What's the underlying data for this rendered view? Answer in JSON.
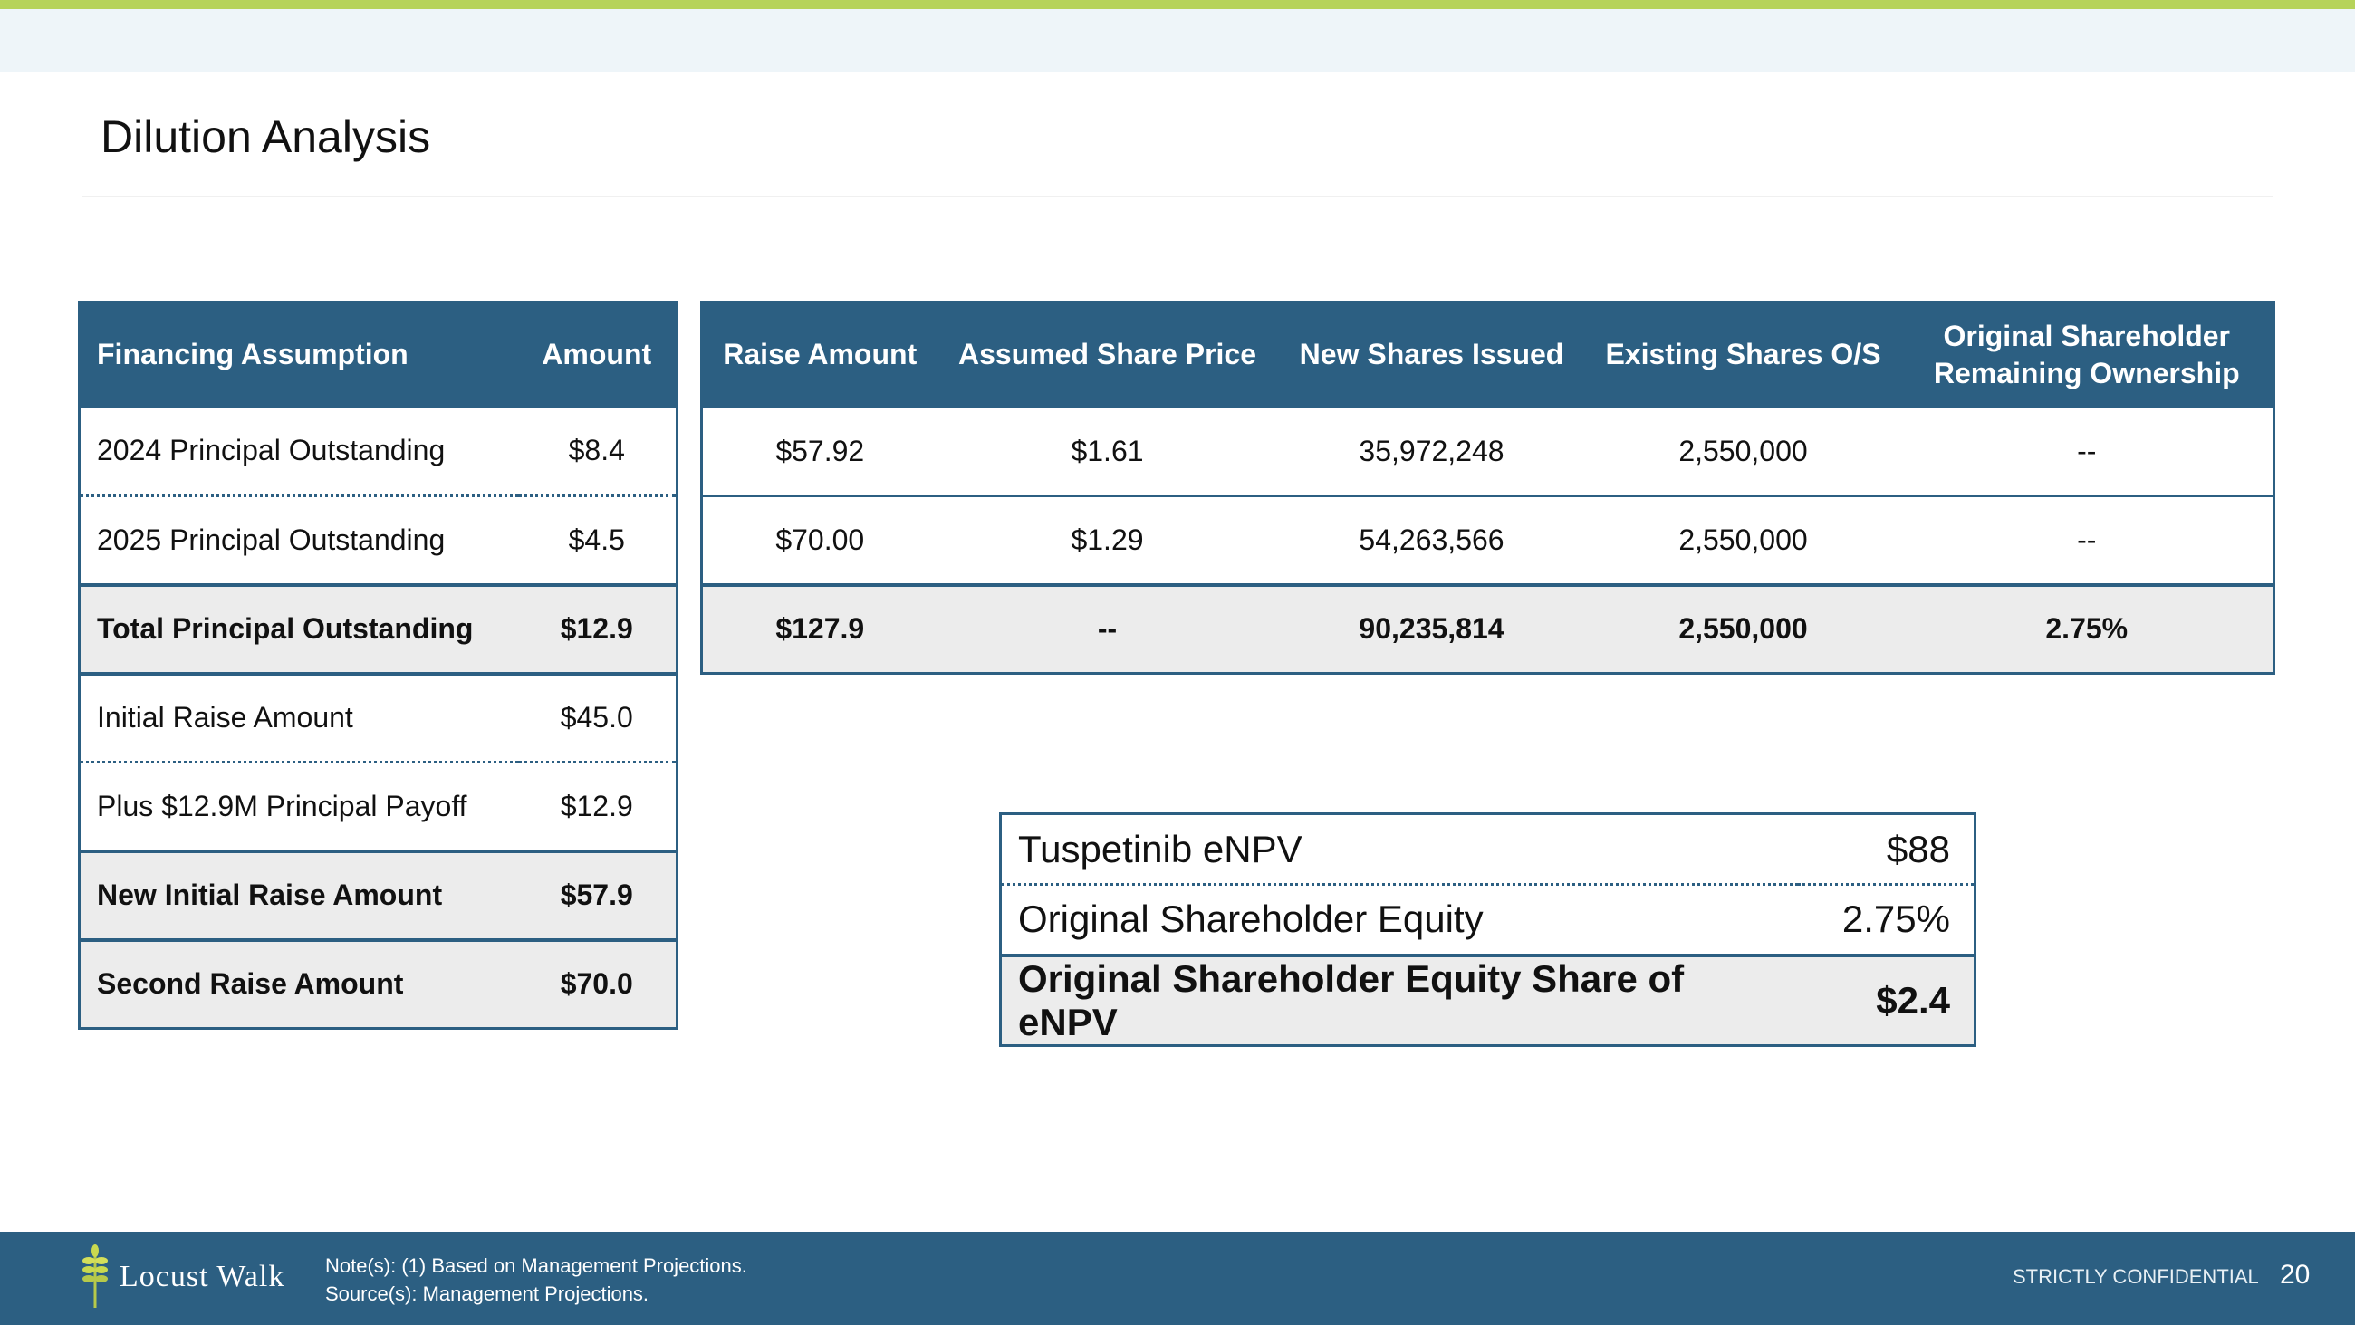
{
  "title": "Dilution Analysis",
  "financing_table": {
    "headers": [
      "Financing Assumption",
      "Amount"
    ],
    "rows": [
      {
        "label": "2024 Principal Outstanding",
        "amount": "$8.4"
      },
      {
        "label": "2025 Principal Outstanding",
        "amount": "$4.5"
      },
      {
        "label": "Total Principal Outstanding",
        "amount": "$12.9"
      },
      {
        "label": "Initial Raise Amount",
        "amount": "$45.0"
      },
      {
        "label": "Plus $12.9M Principal Payoff",
        "amount": "$12.9"
      },
      {
        "label": "New Initial Raise Amount",
        "amount": "$57.9"
      },
      {
        "label": "Second Raise Amount",
        "amount": "$70.0"
      }
    ]
  },
  "dilution_table": {
    "headers": [
      "Raise Amount",
      "Assumed Share Price",
      "New Shares Issued",
      "Existing Shares O/S",
      "Original Shareholder Remaining Ownership"
    ],
    "rows": [
      [
        "$57.92",
        "$1.61",
        "35,972,248",
        "2,550,000",
        "--"
      ],
      [
        "$70.00",
        "$1.29",
        "54,263,566",
        "2,550,000",
        "--"
      ],
      [
        "$127.9",
        "--",
        "90,235,814",
        "2,550,000",
        "2.75%"
      ]
    ]
  },
  "enpv_box": {
    "rows": [
      {
        "label": "Tuspetinib eNPV",
        "value": "$88"
      },
      {
        "label": "Original Shareholder Equity",
        "value": "2.75%"
      },
      {
        "label": "Original Shareholder Equity Share of eNPV",
        "value": "$2.4"
      }
    ]
  },
  "footer": {
    "logo": "Locust Walk",
    "note": "Note(s): (1) Based on Management Projections.",
    "source": "Source(s): Management Projections.",
    "confidential": "STRICTLY CONFIDENTIAL",
    "page": "20"
  },
  "colors": {
    "header": "#2c5f82",
    "accent": "#b6d35a",
    "total_row": "#ececec"
  }
}
